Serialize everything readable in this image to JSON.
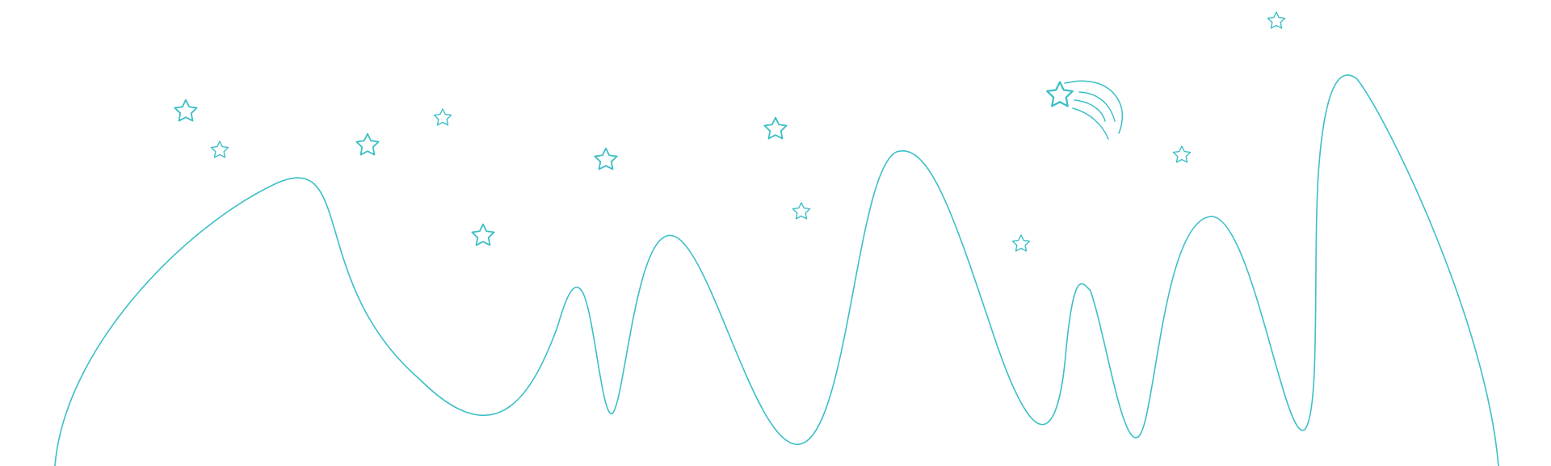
{
  "colors": {
    "background": "#ffffff",
    "line": "#3cbfc6"
  },
  "illustration": {
    "subject": "line-art-landscape",
    "elements": {
      "hills": "wavy-hill-outline",
      "stars": "star-outline-icon",
      "comet": "shooting-star-icon"
    }
  }
}
